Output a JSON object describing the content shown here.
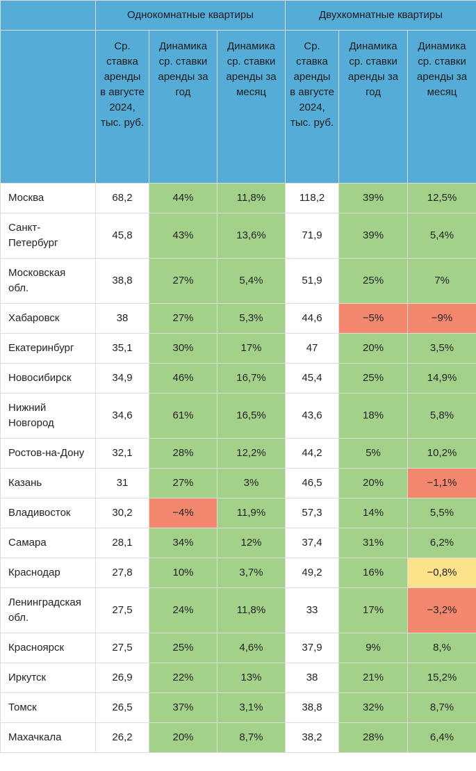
{
  "header": {
    "groups": [
      "Однокомнатные квартиры",
      "Двухкомнатные квартиры"
    ],
    "columns": [
      "Ср. ставка аренды в августе 2024, тыс. руб.",
      "Динамика ср. ставки аренды за год",
      "Динамика ср. ставки аренды за месяц",
      "Ср. ставка аренды в августе 2024, тыс. руб.",
      "Динамика ср. ставки аренды за год",
      "Динамика ср. ставки аренды за месяц"
    ]
  },
  "table": {
    "rows": [
      {
        "name": "Москва",
        "values": [
          "68,2",
          "44%",
          "11,8%",
          "118,2",
          "39%",
          "12,5%"
        ],
        "fills": [
          "#ffffff",
          "#a3d18a",
          "#a3d18a",
          "#ffffff",
          "#a3d18a",
          "#a3d18a"
        ]
      },
      {
        "name": "Санкт-Петербург",
        "values": [
          "45,8",
          "43%",
          "13,6%",
          "71,9",
          "39%",
          "5,4%"
        ],
        "fills": [
          "#ffffff",
          "#a3d18a",
          "#a3d18a",
          "#ffffff",
          "#a3d18a",
          "#a3d18a"
        ]
      },
      {
        "name": "Московская обл.",
        "values": [
          "38,8",
          "27%",
          "5,4%",
          "51,9",
          "25%",
          "7%"
        ],
        "fills": [
          "#ffffff",
          "#a3d18a",
          "#a3d18a",
          "#ffffff",
          "#a3d18a",
          "#a3d18a"
        ]
      },
      {
        "name": "Хабаровск",
        "values": [
          "38",
          "27%",
          "5,3%",
          "44,6",
          "−5%",
          "−9%"
        ],
        "fills": [
          "#ffffff",
          "#a3d18a",
          "#a3d18a",
          "#ffffff",
          "#f4886f",
          "#f4886f"
        ]
      },
      {
        "name": "Екатеринбург",
        "values": [
          "35,1",
          "30%",
          "17%",
          "47",
          "20%",
          "3,5%"
        ],
        "fills": [
          "#ffffff",
          "#a3d18a",
          "#a3d18a",
          "#ffffff",
          "#a3d18a",
          "#a3d18a"
        ]
      },
      {
        "name": "Новосибирск",
        "values": [
          "34,9",
          "46%",
          "16,7%",
          "45,4",
          "25%",
          "14,9%"
        ],
        "fills": [
          "#ffffff",
          "#a3d18a",
          "#a3d18a",
          "#ffffff",
          "#a3d18a",
          "#a3d18a"
        ]
      },
      {
        "name": "Нижний Новгород",
        "values": [
          "34,6",
          "61%",
          "16,5%",
          "43,6",
          "18%",
          "5,8%"
        ],
        "fills": [
          "#ffffff",
          "#a3d18a",
          "#a3d18a",
          "#ffffff",
          "#a3d18a",
          "#a3d18a"
        ]
      },
      {
        "name": "Ростов-на-Дону",
        "values": [
          "32,1",
          "28%",
          "12,2%",
          "44,2",
          "5%",
          "10,2%"
        ],
        "fills": [
          "#ffffff",
          "#a3d18a",
          "#a3d18a",
          "#ffffff",
          "#a3d18a",
          "#a3d18a"
        ]
      },
      {
        "name": "Казань",
        "values": [
          "31",
          "27%",
          "3%",
          "46,5",
          "20%",
          "−1,1%"
        ],
        "fills": [
          "#ffffff",
          "#a3d18a",
          "#a3d18a",
          "#ffffff",
          "#a3d18a",
          "#f4886f"
        ]
      },
      {
        "name": "Владивосток",
        "values": [
          "30,2",
          "−4%",
          "11,9%",
          "57,3",
          "14%",
          "5,5%"
        ],
        "fills": [
          "#ffffff",
          "#f4886f",
          "#a3d18a",
          "#ffffff",
          "#a3d18a",
          "#a3d18a"
        ]
      },
      {
        "name": "Самара",
        "values": [
          "28,1",
          "34%",
          "12%",
          "37,4",
          "31%",
          "6,2%"
        ],
        "fills": [
          "#ffffff",
          "#a3d18a",
          "#a3d18a",
          "#ffffff",
          "#a3d18a",
          "#a3d18a"
        ]
      },
      {
        "name": "Краснодар",
        "values": [
          "27,8",
          "10%",
          "3,7%",
          "49,2",
          "16%",
          "−0,8%"
        ],
        "fills": [
          "#ffffff",
          "#a3d18a",
          "#a3d18a",
          "#ffffff",
          "#a3d18a",
          "#fce38a"
        ]
      },
      {
        "name": "Ленинградская обл.",
        "values": [
          "27,5",
          "24%",
          "11,8%",
          "33",
          "17%",
          "−3,2%"
        ],
        "fills": [
          "#ffffff",
          "#a3d18a",
          "#a3d18a",
          "#ffffff",
          "#a3d18a",
          "#f4886f"
        ]
      },
      {
        "name": "Красноярск",
        "values": [
          "27,5",
          "25%",
          "4,6%",
          "37,9",
          "9%",
          "8,%"
        ],
        "fills": [
          "#ffffff",
          "#a3d18a",
          "#a3d18a",
          "#ffffff",
          "#a3d18a",
          "#a3d18a"
        ]
      },
      {
        "name": "Иркутск",
        "values": [
          "26,9",
          "22%",
          "13%",
          "38",
          "21%",
          "15,2%"
        ],
        "fills": [
          "#ffffff",
          "#a3d18a",
          "#a3d18a",
          "#ffffff",
          "#a3d18a",
          "#a3d18a"
        ]
      },
      {
        "name": "Томск",
        "values": [
          "26,5",
          "37%",
          "3,1%",
          "38,8",
          "32%",
          "8,7%"
        ],
        "fills": [
          "#ffffff",
          "#a3d18a",
          "#a3d18a",
          "#ffffff",
          "#a3d18a",
          "#a3d18a"
        ]
      },
      {
        "name": "Махачкала",
        "values": [
          "26,2",
          "20%",
          "8,7%",
          "38,2",
          "28%",
          "6,4%"
        ],
        "fills": [
          "#ffffff",
          "#a3d18a",
          "#a3d18a",
          "#ffffff",
          "#a3d18a",
          "#a3d18a"
        ]
      }
    ]
  }
}
